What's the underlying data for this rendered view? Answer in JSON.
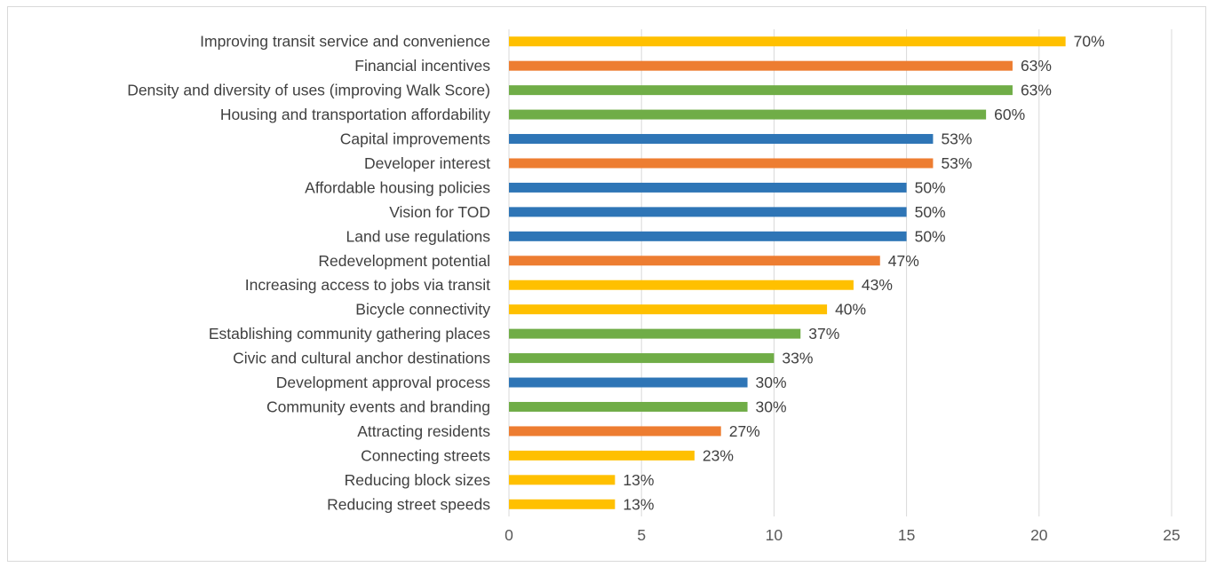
{
  "chart_data": {
    "type": "bar",
    "orientation": "horizontal",
    "title": "",
    "xlabel": "",
    "ylabel": "",
    "xlim": [
      0,
      25
    ],
    "x_ticks": [
      "0",
      "5",
      "10",
      "15",
      "20",
      "25"
    ],
    "grid": "vertical",
    "legend": "none",
    "colors": {
      "yellow": "#FFC000",
      "orange": "#ED7D31",
      "green": "#70AD47",
      "blue": "#2E75B6"
    },
    "bars": [
      {
        "category": "Improving transit service and convenience",
        "value": 21,
        "label": "70%",
        "color": "yellow"
      },
      {
        "category": "Financial incentives",
        "value": 19,
        "label": "63%",
        "color": "orange"
      },
      {
        "category": "Density and diversity of uses (improving Walk Score)",
        "value": 19,
        "label": "63%",
        "color": "green"
      },
      {
        "category": "Housing and transportation affordability",
        "value": 18,
        "label": "60%",
        "color": "green"
      },
      {
        "category": "Capital improvements",
        "value": 16,
        "label": "53%",
        "color": "blue"
      },
      {
        "category": "Developer interest",
        "value": 16,
        "label": "53%",
        "color": "orange"
      },
      {
        "category": "Affordable housing policies",
        "value": 15,
        "label": "50%",
        "color": "blue"
      },
      {
        "category": "Vision for TOD",
        "value": 15,
        "label": "50%",
        "color": "blue"
      },
      {
        "category": "Land use regulations",
        "value": 15,
        "label": "50%",
        "color": "blue"
      },
      {
        "category": "Redevelopment potential",
        "value": 14,
        "label": "47%",
        "color": "orange"
      },
      {
        "category": "Increasing access to jobs via transit",
        "value": 13,
        "label": "43%",
        "color": "yellow"
      },
      {
        "category": "Bicycle connectivity",
        "value": 12,
        "label": "40%",
        "color": "yellow"
      },
      {
        "category": "Establishing community gathering places",
        "value": 11,
        "label": "37%",
        "color": "green"
      },
      {
        "category": "Civic and cultural anchor destinations",
        "value": 10,
        "label": "33%",
        "color": "green"
      },
      {
        "category": "Development approval process",
        "value": 9,
        "label": "30%",
        "color": "blue"
      },
      {
        "category": "Community events and branding",
        "value": 9,
        "label": "30%",
        "color": "green"
      },
      {
        "category": "Attracting residents",
        "value": 8,
        "label": "27%",
        "color": "orange"
      },
      {
        "category": "Connecting streets",
        "value": 7,
        "label": "23%",
        "color": "yellow"
      },
      {
        "category": "Reducing block sizes",
        "value": 4,
        "label": "13%",
        "color": "yellow"
      },
      {
        "category": "Reducing street speeds",
        "value": 4,
        "label": "13%",
        "color": "yellow"
      }
    ]
  }
}
